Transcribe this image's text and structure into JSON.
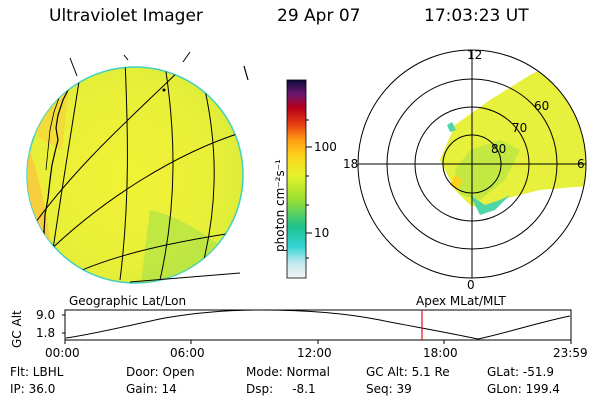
{
  "header": {
    "title": "Ultraviolet Imager",
    "date": "29 Apr 07",
    "time": "17:03:23 UT"
  },
  "colorbar": {
    "unit_label": "photon cm⁻²s⁻¹",
    "ticks": [
      "100",
      "10"
    ]
  },
  "polar_plot": {
    "mlt_labels": [
      "12",
      "18",
      "6",
      "0"
    ],
    "lat_labels": [
      "60",
      "70",
      "80"
    ]
  },
  "panel_labels": {
    "left": "Geographic Lat/Lon",
    "right": "Apex  MLat/MLT"
  },
  "altitude_plot": {
    "ylabel": "GC Alt",
    "yticks": [
      "9.0",
      "1.8"
    ],
    "xticks": [
      "00:00",
      "06:00",
      "12:00",
      "18:00",
      "23:59"
    ]
  },
  "info": {
    "row1": {
      "filter": "Flt: LBHL",
      "door": "Door: Open",
      "mode": "Mode: Normal",
      "gc_alt": "GC Alt: 5.1 Re",
      "glat": "GLat: -51.9"
    },
    "row2": {
      "ip": "IP: 36.0",
      "gain": "Gain: 14",
      "dsp": "Dsp:     -8.1",
      "seq": "Seq: 39",
      "glon": "GLon: 199.4"
    }
  }
}
